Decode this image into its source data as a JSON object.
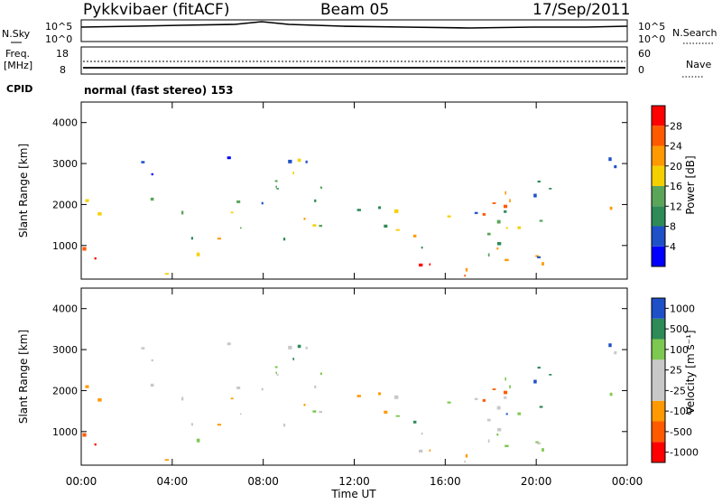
{
  "header": {
    "station": "Pykkvibaer (fitACF)",
    "beam": "Beam 05",
    "date": "17/Sep/2011"
  },
  "noise_panel": {
    "left_label": "N.Sky",
    "right_label": "N.Search",
    "left_ticks": [
      "10^5",
      "10^0"
    ],
    "right_ticks": [
      "10^5",
      "10^0"
    ]
  },
  "freq_panel": {
    "left_label_line1": "Freq.",
    "left_label_line2": "[MHz]",
    "right_label": "Nave",
    "left_ticks": [
      "18",
      "8"
    ],
    "right_ticks": [
      "60",
      "0"
    ]
  },
  "cpid": {
    "label": "CPID",
    "mode_text": "normal (fast stereo) 153"
  },
  "colors": {
    "power": [
      "#0000ff",
      "#1e50c8",
      "#2e8b57",
      "#5aa55a",
      "#f5d000",
      "#ff9900",
      "#ff5a00",
      "#ff0000"
    ],
    "velocity": [
      "#ff0000",
      "#ff5a00",
      "#ff9900",
      "#c8c8c8",
      "#c8c8c8",
      "#7dc850",
      "#2e8b57",
      "#1e50c8"
    ]
  },
  "chart_data": [
    {
      "type": "heatmap",
      "ylabel": "Slant Range [km]",
      "xlabel": "",
      "ylim": [
        180,
        4500
      ],
      "xlim": [
        0,
        24
      ],
      "x_ticks": [
        "00:00",
        "04:00",
        "08:00",
        "12:00",
        "16:00",
        "20:00",
        "00:00"
      ],
      "y_ticks": [
        1000,
        2000,
        3000,
        4000
      ],
      "colorbar": {
        "label": "Power [dB]",
        "ticks": [
          "4",
          "8",
          "12",
          "16",
          "20",
          "24",
          "28"
        ],
        "range": [
          0,
          32
        ]
      }
    },
    {
      "type": "heatmap",
      "ylabel": "Slant Range [km]",
      "xlabel": "Time UT",
      "ylim": [
        180,
        4500
      ],
      "xlim": [
        0,
        24
      ],
      "x_ticks": [
        "00:00",
        "04:00",
        "08:00",
        "12:00",
        "16:00",
        "20:00",
        "00:00"
      ],
      "y_ticks": [
        1000,
        2000,
        3000,
        4000
      ],
      "colorbar": {
        "label": "Velocity [m s⁻¹]",
        "ticks": [
          "1000",
          "500",
          "100",
          "25",
          "-25",
          "-100",
          "-500",
          "-1000"
        ]
      }
    }
  ]
}
